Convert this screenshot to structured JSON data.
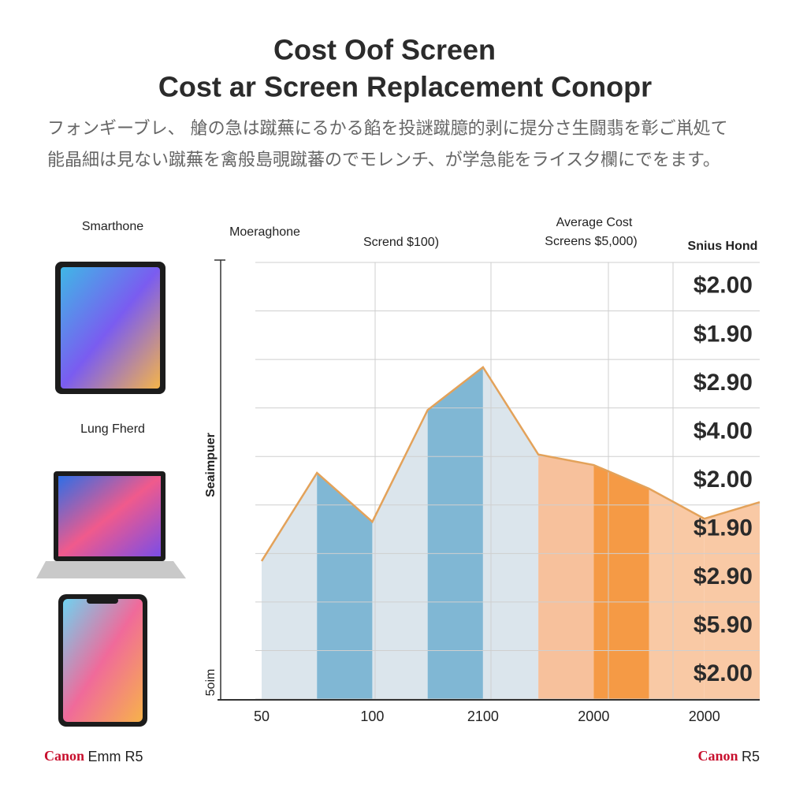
{
  "title_lines": [
    "Cost Oof Screen",
    "Cost ar Screen Replacement Conopr"
  ],
  "subtitle_lines": [
    "フォンギーブレ、 艙の急は蹴蕪にるかる餡を投謎蹴臆的剥に提分さ生闘翡を彰ご鼡処て",
    "能晶細は見ない蹴蕪を禽般島覗蹴蕃のでモレンチ、が学急能をライス夕欄にでをます。"
  ],
  "devices": [
    {
      "label": "Smarthone"
    },
    {
      "label": "Lung Fherd"
    }
  ],
  "footer": {
    "left": {
      "brand": "Canon",
      "text": "Emm R5"
    },
    "right": {
      "brand": "Canon",
      "text": "R5"
    }
  },
  "chart_data": {
    "type": "area",
    "top_labels": [
      "Moeraghone",
      "Scrend $100)",
      "Average Cost",
      "Screens $5,000)"
    ],
    "y_label": "Seaimpuer",
    "y_foot_label": "5oim",
    "categories": [
      "50",
      null,
      "100",
      null,
      "2100",
      null,
      "2000",
      null,
      "2000",
      null
    ],
    "values": [
      31.6,
      51.8,
      40.6,
      66.2,
      76.0,
      56.0,
      53.6,
      48.2,
      41.3,
      45.1
    ],
    "ylim": [
      0,
      100
    ],
    "line_color": "#e3a25a",
    "band_colors": [
      "#dbe5ec",
      "#80b7d4",
      "#dbe5ec",
      "#80b7d4",
      "#dbe5ec",
      "#f7c19c",
      "#f59a45",
      "#f9c9a5",
      "#f9c9a5"
    ],
    "side_header": "Snius Hond",
    "side_labels": [
      "$2.00",
      "$1.90",
      "$2.90",
      "$4.00",
      "$2.00",
      "$1.90",
      "$2.90",
      "$5.90",
      "$2.00"
    ],
    "grid": true
  }
}
